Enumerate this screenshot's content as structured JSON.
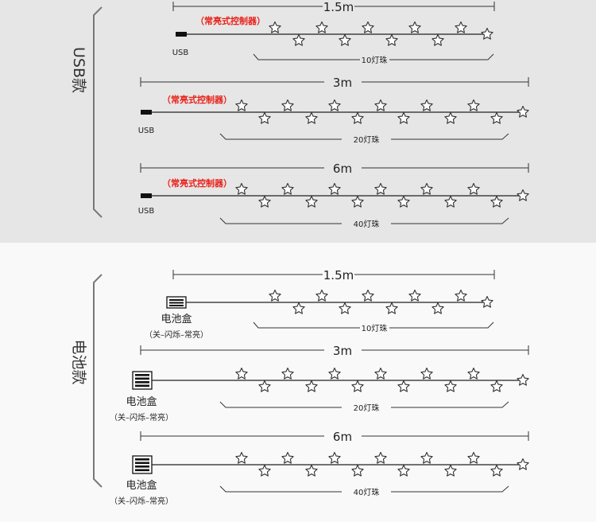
{
  "colors": {
    "usb_bg": "#e6e6e6",
    "battery_bg": "#f9f9f9",
    "line": "#222222",
    "controller_red": "#e8221a",
    "star_stroke": "#333333"
  },
  "sections": [
    {
      "id": "usb",
      "title": "USB款",
      "rows": [
        {
          "length_label": "1.5m",
          "controller_label": "（常亮式控制器）",
          "plug_label": "USB",
          "count_label": "10灯珠",
          "star_count": 10
        },
        {
          "length_label": "3m",
          "controller_label": "（常亮式控制器）",
          "plug_label": "USB",
          "count_label": "20灯珠",
          "star_count": 13
        },
        {
          "length_label": "6m",
          "controller_label": "（常亮式控制器）",
          "plug_label": "USB",
          "count_label": "40灯珠",
          "star_count": 13
        }
      ]
    },
    {
      "id": "battery",
      "title": "电池款",
      "rows": [
        {
          "length_label": "1.5m",
          "box_label": "电池盒",
          "mode_label": "（关–闪烁–常亮）",
          "count_label": "10灯珠",
          "star_count": 10
        },
        {
          "length_label": "3m",
          "box_label": "电池盒",
          "mode_label": "（关–闪烁–常亮）",
          "count_label": "20灯珠",
          "star_count": 13
        },
        {
          "length_label": "6m",
          "box_label": "电池盒",
          "mode_label": "（关–闪烁–常亮）",
          "count_label": "40灯珠",
          "star_count": 13
        }
      ]
    }
  ]
}
